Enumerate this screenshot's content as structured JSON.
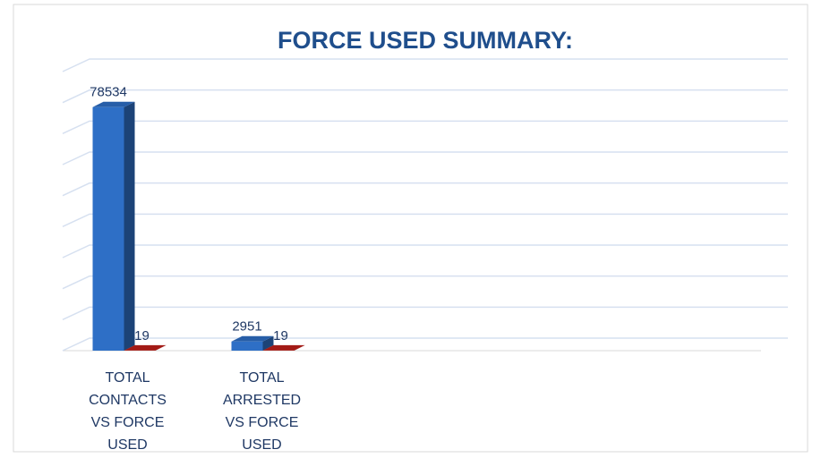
{
  "chart_data": {
    "type": "bar3d",
    "title": "FORCE USED SUMMARY:",
    "categories": [
      "TOTAL CONTACTS VS FORCE USED",
      "TOTAL ARRESTED VS FORCE USED"
    ],
    "series": [
      {
        "color": "#2e6fc6",
        "values": [
          78534,
          2951
        ]
      },
      {
        "color": "#c0201a",
        "values": [
          19,
          19
        ]
      }
    ],
    "ylim": [
      0,
      90000
    ],
    "yticks": [
      0,
      10000,
      20000,
      30000,
      40000,
      50000,
      60000,
      70000,
      80000,
      90000
    ],
    "grid": true
  }
}
